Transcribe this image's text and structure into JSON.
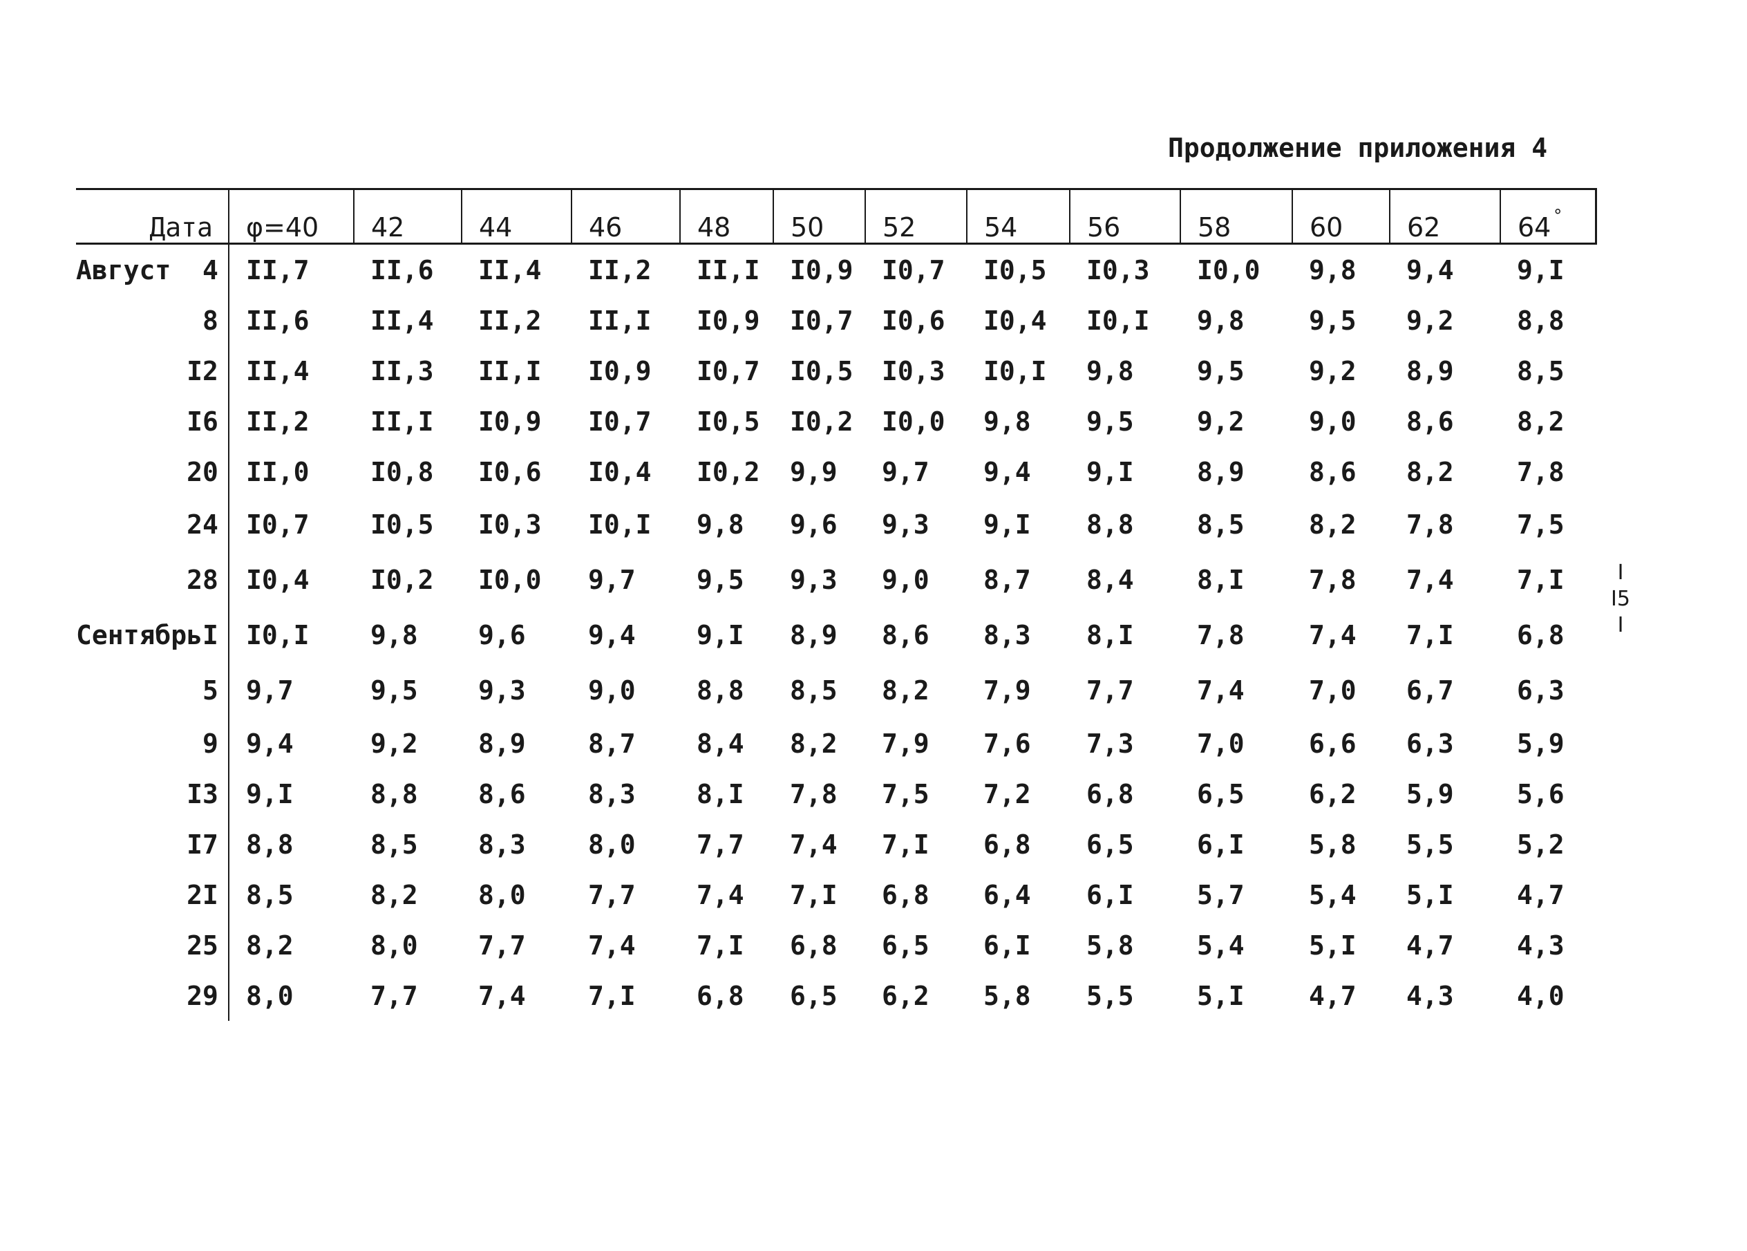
{
  "caption": "Продолжение приложения 4",
  "header": {
    "date_label": "Дата",
    "latitudes": [
      "φ=40",
      "42",
      "44",
      "46",
      "48",
      "50",
      "52",
      "54",
      "56",
      "58",
      "60",
      "62",
      "64"
    ],
    "degree_mark": "°"
  },
  "rows": [
    {
      "month": "Август",
      "day": "4",
      "values": [
        "II,7",
        "II,6",
        "II,4",
        "II,2",
        "II,I",
        "I0,9",
        "I0,7",
        "I0,5",
        "I0,3",
        "I0,0",
        "9,8",
        "9,4",
        "9,I"
      ]
    },
    {
      "month": "",
      "day": "8",
      "values": [
        "II,6",
        "II,4",
        "II,2",
        "II,I",
        "I0,9",
        "I0,7",
        "I0,6",
        "I0,4",
        "I0,I",
        "9,8",
        "9,5",
        "9,2",
        "8,8"
      ]
    },
    {
      "month": "",
      "day": "I2",
      "values": [
        "II,4",
        "II,3",
        "II,I",
        "I0,9",
        "I0,7",
        "I0,5",
        "I0,3",
        "I0,I",
        "9,8",
        "9,5",
        "9,2",
        "8,9",
        "8,5"
      ]
    },
    {
      "month": "",
      "day": "I6",
      "values": [
        "II,2",
        "II,I",
        "I0,9",
        "I0,7",
        "I0,5",
        "I0,2",
        "I0,0",
        "9,8",
        "9,5",
        "9,2",
        "9,0",
        "8,6",
        "8,2"
      ]
    },
    {
      "month": "",
      "day": "20",
      "values": [
        "II,0",
        "I0,8",
        "I0,6",
        "I0,4",
        "I0,2",
        "9,9",
        "9,7",
        "9,4",
        "9,I",
        "8,9",
        "8,6",
        "8,2",
        "7,8"
      ]
    },
    {
      "month": "",
      "day": "24",
      "values": [
        "I0,7",
        "I0,5",
        "I0,3",
        "I0,I",
        "9,8",
        "9,6",
        "9,3",
        "9,I",
        "8,8",
        "8,5",
        "8,2",
        "7,8",
        "7,5"
      ]
    },
    {
      "month": "",
      "day": "28",
      "values": [
        "I0,4",
        "I0,2",
        "I0,0",
        "9,7",
        "9,5",
        "9,3",
        "9,0",
        "8,7",
        "8,4",
        "8,I",
        "7,8",
        "7,4",
        "7,I"
      ]
    },
    {
      "month": "Сентябрь",
      "day": "I",
      "values": [
        "I0,I",
        "9,8",
        "9,6",
        "9,4",
        "9,I",
        "8,9",
        "8,6",
        "8,3",
        "8,I",
        "7,8",
        "7,4",
        "7,I",
        "6,8"
      ]
    },
    {
      "month": "",
      "day": "5",
      "values": [
        "9,7",
        "9,5",
        "9,3",
        "9,0",
        "8,8",
        "8,5",
        "8,2",
        "7,9",
        "7,7",
        "7,4",
        "7,0",
        "6,7",
        "6,3"
      ]
    },
    {
      "month": "",
      "day": "9",
      "values": [
        "9,4",
        "9,2",
        "8,9",
        "8,7",
        "8,4",
        "8,2",
        "7,9",
        "7,6",
        "7,3",
        "7,0",
        "6,6",
        "6,3",
        "5,9"
      ]
    },
    {
      "month": "",
      "day": "I3",
      "values": [
        "9,I",
        "8,8",
        "8,6",
        "8,3",
        "8,I",
        "7,8",
        "7,5",
        "7,2",
        "6,8",
        "6,5",
        "6,2",
        "5,9",
        "5,6"
      ]
    },
    {
      "month": "",
      "day": "I7",
      "values": [
        "8,8",
        "8,5",
        "8,3",
        "8,0",
        "7,7",
        "7,4",
        "7,I",
        "6,8",
        "6,5",
        "6,I",
        "5,8",
        "5,5",
        "5,2"
      ]
    },
    {
      "month": "",
      "day": "2I",
      "values": [
        "8,5",
        "8,2",
        "8,0",
        "7,7",
        "7,4",
        "7,I",
        "6,8",
        "6,4",
        "6,I",
        "5,7",
        "5,4",
        "5,I",
        "4,7"
      ]
    },
    {
      "month": "",
      "day": "25",
      "values": [
        "8,2",
        "8,0",
        "7,7",
        "7,4",
        "7,I",
        "6,8",
        "6,5",
        "6,I",
        "5,8",
        "5,4",
        "5,I",
        "4,7",
        "4,3"
      ]
    },
    {
      "month": "",
      "day": "29",
      "values": [
        "8,0",
        "7,7",
        "7,4",
        "7,I",
        "6,8",
        "6,5",
        "6,2",
        "5,8",
        "5,5",
        "5,I",
        "4,7",
        "4,3",
        "4,0"
      ]
    }
  ],
  "page_mark": [
    "I",
    "I5",
    "I"
  ]
}
